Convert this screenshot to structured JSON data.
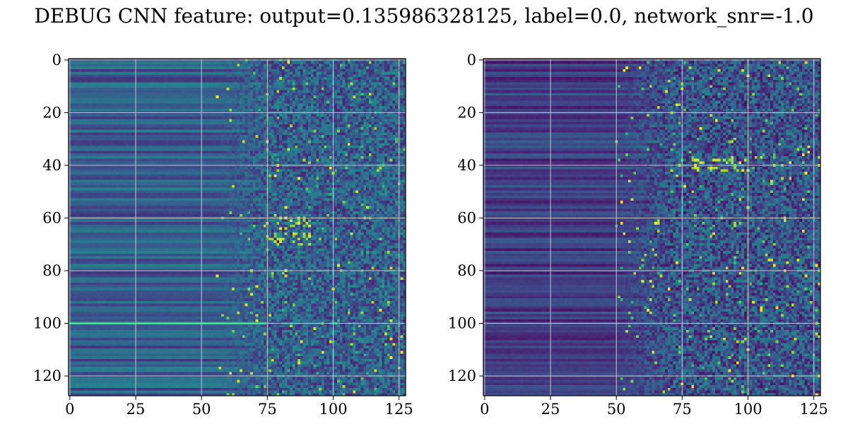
{
  "figure": {
    "title": "DEBUG CNN feature: output=0.135986328125, label=0.0, network_snr=-1.0"
  },
  "chart_data": [
    {
      "type": "heatmap",
      "title": "",
      "xlabel": "",
      "ylabel": "",
      "rows": 128,
      "cols": 128,
      "xlim": [
        0,
        127
      ],
      "ylim": [
        127,
        0
      ],
      "x_ticks": [
        0,
        25,
        50,
        75,
        100,
        125
      ],
      "y_ticks": [
        0,
        20,
        40,
        60,
        80,
        100,
        120
      ],
      "grid": true,
      "colormap": "viridis",
      "structure": "smooth horizontal bands for columns 0-70, noisy speckled values for columns 70-127 with bright spots near rows 60-70",
      "seed": 7
    },
    {
      "type": "heatmap",
      "title": "",
      "xlabel": "",
      "ylabel": "",
      "rows": 128,
      "cols": 128,
      "xlim": [
        0,
        127
      ],
      "ylim": [
        127,
        0
      ],
      "x_ticks": [
        0,
        25,
        50,
        75,
        100,
        125
      ],
      "y_ticks": [
        0,
        20,
        40,
        60,
        80,
        100,
        120
      ],
      "grid": true,
      "colormap": "viridis",
      "structure": "darker overall, horizontal bands for columns 0-65, noisy speckled values for columns 65-127 with bright spots near row 40",
      "seed": 19
    }
  ],
  "colors": {
    "grid": "#c8c8c8",
    "axes": "#000000",
    "viridis": [
      "#440154",
      "#482878",
      "#3e4a89",
      "#31688e",
      "#26828e",
      "#1f9e89",
      "#35b779",
      "#6ece58",
      "#b5de2b",
      "#fde725"
    ]
  }
}
